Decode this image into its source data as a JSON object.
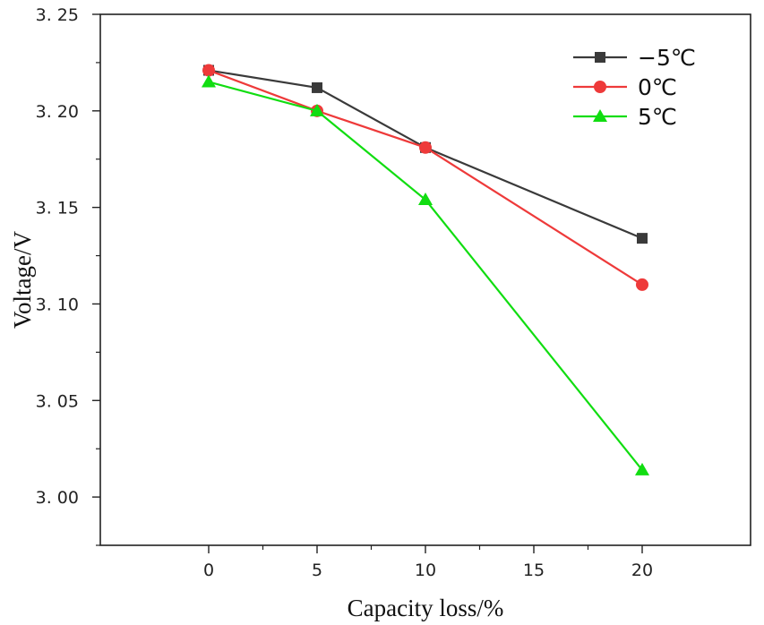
{
  "chart_data": {
    "type": "line",
    "title": "",
    "xlabel": "Capacity loss/%",
    "ylabel": "Voltage/V",
    "xlim": [
      -5,
      25
    ],
    "ylim": [
      2.975,
      3.25
    ],
    "x_ticks": [
      0,
      5,
      10,
      15,
      20
    ],
    "x_tick_labels": [
      "0",
      "5",
      "10",
      "15",
      "20"
    ],
    "y_ticks": [
      3.0,
      3.05,
      3.1,
      3.15,
      3.2,
      3.25
    ],
    "y_tick_labels": [
      "3. 00",
      "3. 05",
      "3. 10",
      "3. 15",
      "3. 20",
      "3. 25"
    ],
    "grid": false,
    "legend_position": "top-right",
    "series": [
      {
        "name": "−5℃",
        "color": "#3a3a3a",
        "marker": "square",
        "x": [
          0,
          5,
          10,
          20
        ],
        "values": [
          3.221,
          3.212,
          3.181,
          3.134
        ]
      },
      {
        "name": "0℃",
        "color": "#ee3a3a",
        "marker": "circle",
        "x": [
          0,
          5,
          10,
          20
        ],
        "values": [
          3.221,
          3.2,
          3.181,
          3.11
        ]
      },
      {
        "name": "5℃",
        "color": "#11dd11",
        "marker": "triangle",
        "x": [
          0,
          5,
          10,
          20
        ],
        "values": [
          3.215,
          3.2,
          3.154,
          3.014
        ]
      }
    ]
  }
}
